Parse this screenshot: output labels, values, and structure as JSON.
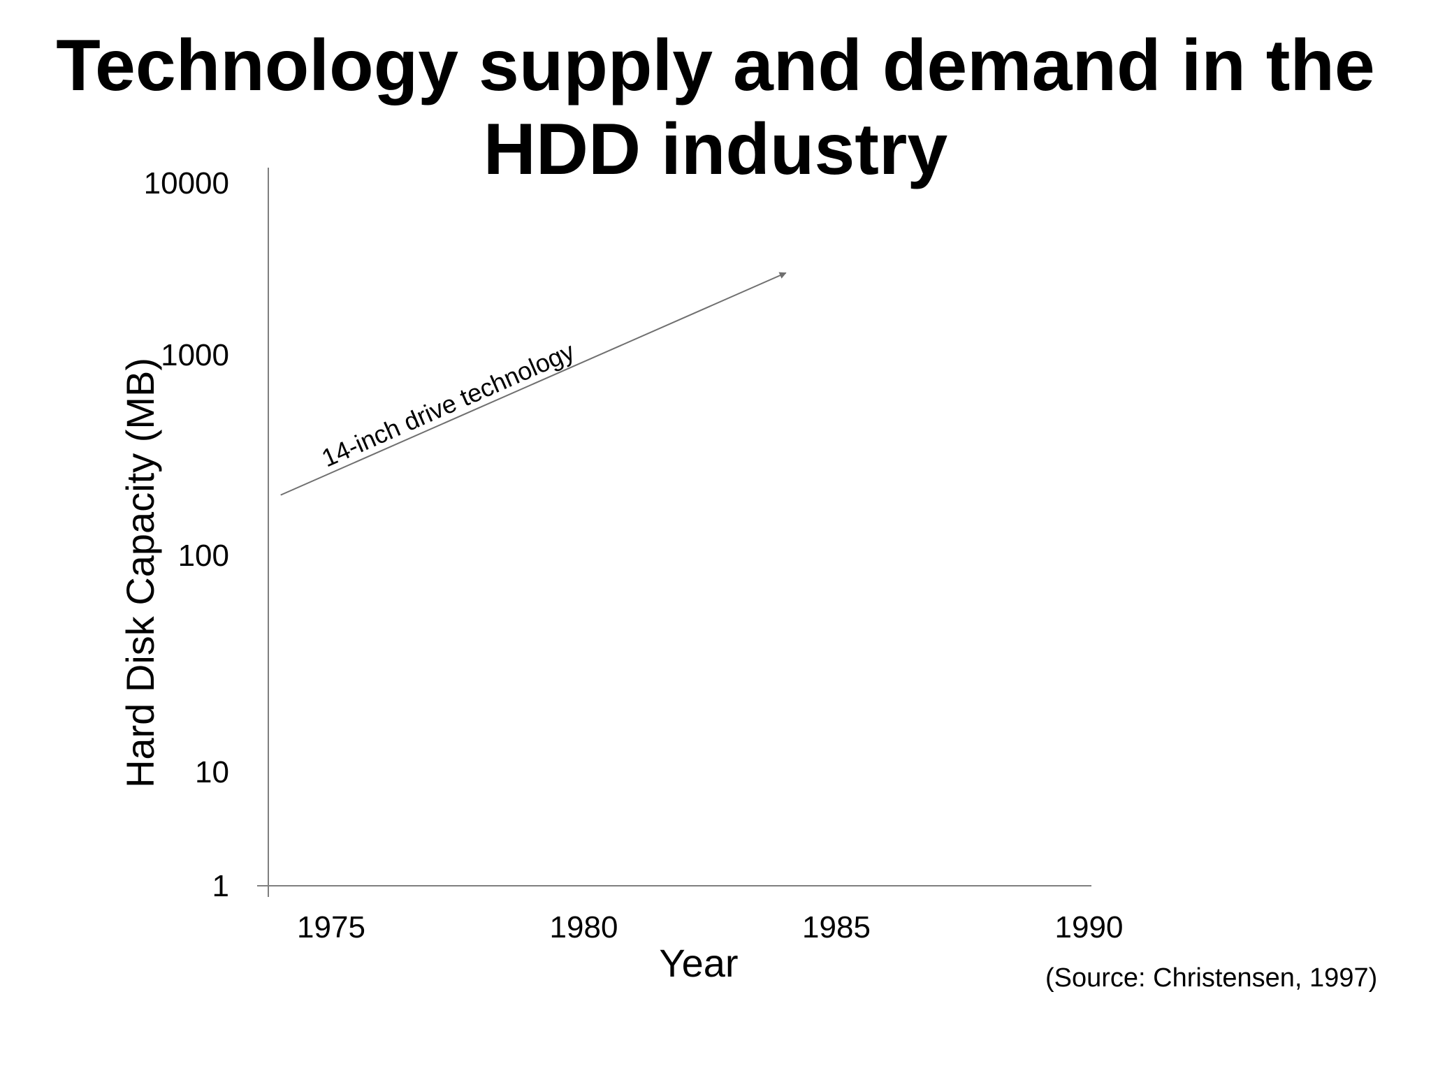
{
  "title_lines": [
    "Technology supply and demand in the",
    "HDD industry"
  ],
  "source": "(Source: Christensen, 1997)",
  "colors": {
    "axis": "#7f7f7f",
    "arrow": "#6f6f6f",
    "text": "#000000"
  },
  "chart_data": {
    "type": "line",
    "xlabel": "Year",
    "ylabel": "Hard Disk Capacity (MB)",
    "x_ticks": [
      1975,
      1980,
      1985,
      1990
    ],
    "x_tick_labels": [
      "1975",
      "1980",
      "1985",
      "1990"
    ],
    "y_ticks": [
      1,
      10,
      100,
      1000,
      10000
    ],
    "y_tick_labels": [
      "1",
      "10",
      "100",
      "1000",
      "10000"
    ],
    "xlim": [
      1972.5,
      1990.4
    ],
    "ylim": [
      1,
      10000
    ],
    "y_scale": "log",
    "grid": false,
    "legend": "none",
    "annotations": [
      {
        "label": "14-inch drive technology",
        "style": "arrow",
        "from": {
          "x": 1974,
          "y": 200
        },
        "to": {
          "x": 1984,
          "y": 3000
        }
      }
    ]
  }
}
